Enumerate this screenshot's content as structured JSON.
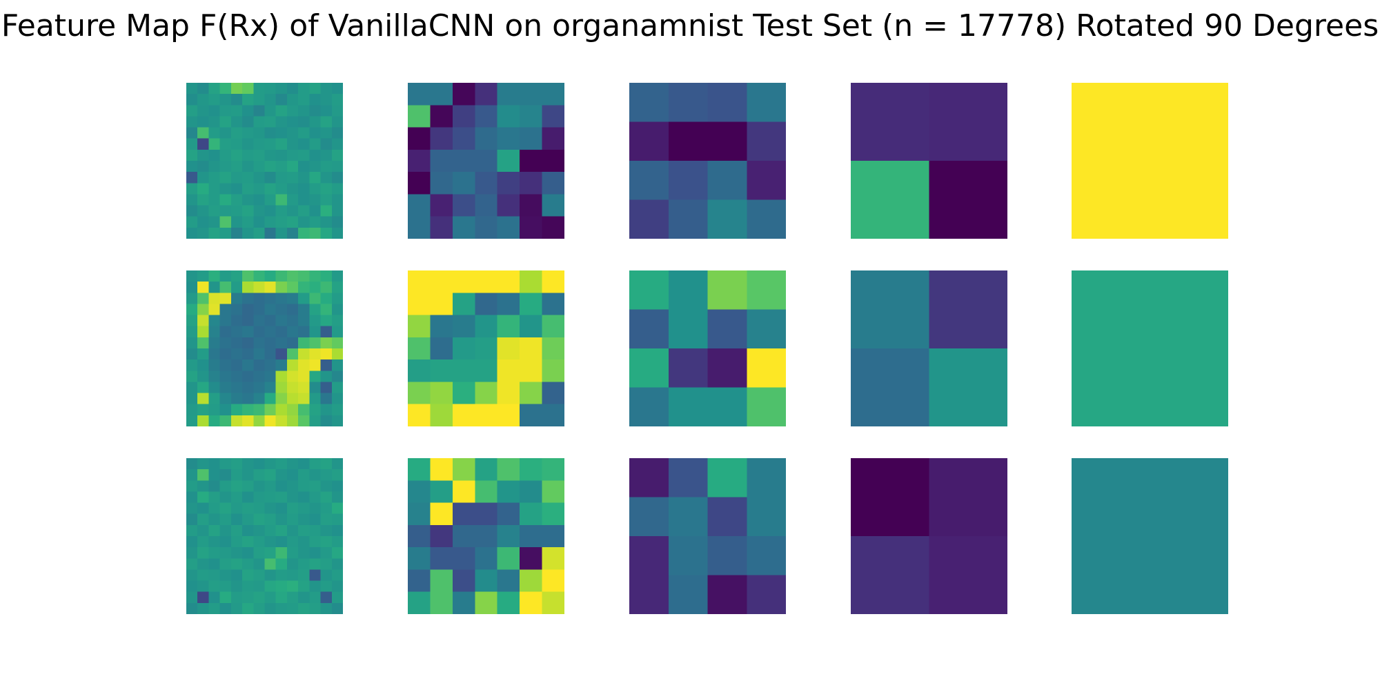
{
  "chart_data": {
    "type": "heatmap",
    "title": "Feature Map F(Rx) of VanillaCNN on organamnist Test Set (n = 17778) Rotated 90 Degrees",
    "colormap": "viridis",
    "value_range": [
      0,
      1
    ],
    "axes_visible": false,
    "rows": 3,
    "cols": 5,
    "grid_sizes": [
      14,
      7,
      4,
      2,
      1
    ],
    "panels": [
      [
        {
          "values": [
            [
              0.52,
              0.48,
              0.58,
              0.66,
              0.79,
              0.76,
              0.55,
              0.54,
              0.52,
              0.49,
              0.55,
              0.58,
              0.52,
              0.5
            ],
            [
              0.49,
              0.53,
              0.55,
              0.52,
              0.48,
              0.58,
              0.55,
              0.52,
              0.47,
              0.53,
              0.55,
              0.5,
              0.52,
              0.55
            ],
            [
              0.56,
              0.52,
              0.5,
              0.54,
              0.55,
              0.5,
              0.45,
              0.53,
              0.58,
              0.54,
              0.52,
              0.48,
              0.5,
              0.54
            ],
            [
              0.52,
              0.5,
              0.52,
              0.58,
              0.52,
              0.48,
              0.55,
              0.56,
              0.52,
              0.5,
              0.49,
              0.53,
              0.58,
              0.52
            ],
            [
              0.46,
              0.7,
              0.55,
              0.52,
              0.56,
              0.54,
              0.53,
              0.49,
              0.5,
              0.52,
              0.55,
              0.5,
              0.52,
              0.48
            ],
            [
              0.54,
              0.22,
              0.66,
              0.56,
              0.55,
              0.52,
              0.54,
              0.55,
              0.58,
              0.52,
              0.5,
              0.55,
              0.48,
              0.52
            ],
            [
              0.58,
              0.52,
              0.5,
              0.55,
              0.58,
              0.55,
              0.56,
              0.53,
              0.52,
              0.54,
              0.55,
              0.5,
              0.52,
              0.58
            ],
            [
              0.5,
              0.48,
              0.52,
              0.54,
              0.56,
              0.52,
              0.55,
              0.58,
              0.56,
              0.6,
              0.5,
              0.52,
              0.55,
              0.54
            ],
            [
              0.28,
              0.52,
              0.55,
              0.58,
              0.54,
              0.55,
              0.52,
              0.48,
              0.54,
              0.55,
              0.52,
              0.6,
              0.52,
              0.48
            ],
            [
              0.56,
              0.62,
              0.55,
              0.52,
              0.5,
              0.56,
              0.54,
              0.58,
              0.55,
              0.52,
              0.5,
              0.55,
              0.58,
              0.55
            ],
            [
              0.52,
              0.58,
              0.55,
              0.62,
              0.56,
              0.52,
              0.5,
              0.55,
              0.68,
              0.54,
              0.5,
              0.52,
              0.56,
              0.52
            ],
            [
              0.48,
              0.52,
              0.56,
              0.54,
              0.55,
              0.58,
              0.52,
              0.5,
              0.55,
              0.52,
              0.56,
              0.5,
              0.64,
              0.52
            ],
            [
              0.55,
              0.5,
              0.52,
              0.72,
              0.52,
              0.55,
              0.5,
              0.54,
              0.56,
              0.58,
              0.52,
              0.55,
              0.52,
              0.48
            ],
            [
              0.5,
              0.52,
              0.58,
              0.55,
              0.44,
              0.52,
              0.56,
              0.4,
              0.52,
              0.44,
              0.66,
              0.68,
              0.6,
              0.52
            ]
          ]
        },
        {
          "values": [
            [
              0.4,
              0.4,
              0.02,
              0.16,
              0.42,
              0.42,
              0.42
            ],
            [
              0.72,
              0.02,
              0.2,
              0.28,
              0.48,
              0.45,
              0.22
            ],
            [
              0.0,
              0.18,
              0.24,
              0.35,
              0.4,
              0.38,
              0.1
            ],
            [
              0.12,
              0.32,
              0.32,
              0.32,
              0.58,
              0.0,
              0.0
            ],
            [
              0.0,
              0.34,
              0.38,
              0.28,
              0.2,
              0.16,
              0.3
            ],
            [
              0.38,
              0.12,
              0.24,
              0.32,
              0.16,
              0.04,
              0.42
            ],
            [
              0.38,
              0.16,
              0.4,
              0.34,
              0.38,
              0.05,
              0.02
            ]
          ]
        },
        {
          "values": [
            [
              0.32,
              0.28,
              0.26,
              0.4
            ],
            [
              0.1,
              0.0,
              0.0,
              0.18
            ],
            [
              0.32,
              0.25,
              0.35,
              0.12
            ],
            [
              0.2,
              0.3,
              0.45,
              0.35
            ]
          ]
        },
        {
          "values": [
            [
              0.15,
              0.14
            ],
            [
              0.66,
              0.0
            ]
          ]
        },
        {
          "values": [
            [
              1.0
            ]
          ]
        }
      ],
      [
        {
          "values": [
            [
              0.52,
              0.55,
              0.64,
              0.55,
              0.58,
              0.72,
              0.66,
              0.62,
              0.68,
              0.72,
              0.7,
              0.66,
              0.64,
              0.54
            ],
            [
              0.5,
              0.98,
              0.52,
              0.7,
              0.55,
              0.88,
              0.92,
              0.96,
              0.8,
              0.75,
              0.66,
              0.64,
              0.68,
              0.58
            ],
            [
              0.54,
              0.72,
              0.95,
              0.96,
              0.42,
              0.38,
              0.36,
              0.38,
              0.4,
              0.42,
              0.55,
              0.68,
              0.62,
              0.55
            ],
            [
              0.62,
              0.82,
              0.96,
              0.4,
              0.38,
              0.34,
              0.36,
              0.4,
              0.38,
              0.36,
              0.42,
              0.58,
              0.66,
              0.52
            ],
            [
              0.58,
              0.92,
              0.46,
              0.4,
              0.36,
              0.34,
              0.38,
              0.36,
              0.4,
              0.38,
              0.42,
              0.54,
              0.6,
              0.56
            ],
            [
              0.55,
              0.88,
              0.44,
              0.36,
              0.38,
              0.4,
              0.36,
              0.38,
              0.36,
              0.4,
              0.38,
              0.52,
              0.3,
              0.54
            ],
            [
              0.52,
              0.72,
              0.42,
              0.38,
              0.36,
              0.34,
              0.38,
              0.36,
              0.38,
              0.36,
              0.68,
              0.72,
              0.8,
              0.76
            ],
            [
              0.48,
              0.55,
              0.4,
              0.36,
              0.38,
              0.36,
              0.4,
              0.36,
              0.26,
              0.72,
              0.92,
              0.96,
              0.98,
              0.88
            ],
            [
              0.54,
              0.5,
              0.42,
              0.38,
              0.36,
              0.4,
              0.36,
              0.38,
              0.42,
              0.9,
              0.96,
              0.98,
              0.3,
              0.52
            ],
            [
              0.58,
              0.52,
              0.44,
              0.4,
              0.38,
              0.36,
              0.38,
              0.4,
              0.88,
              0.94,
              0.96,
              0.6,
              0.52,
              0.46
            ],
            [
              0.52,
              0.6,
              0.48,
              0.42,
              0.4,
              0.38,
              0.4,
              0.44,
              0.86,
              0.92,
              0.94,
              0.48,
              0.3,
              0.55
            ],
            [
              0.52,
              0.9,
              0.56,
              0.46,
              0.42,
              0.4,
              0.44,
              0.62,
              0.82,
              0.9,
              0.92,
              0.54,
              0.4,
              0.52
            ],
            [
              0.54,
              0.58,
              0.55,
              0.5,
              0.62,
              0.66,
              0.68,
              0.78,
              0.88,
              0.84,
              0.7,
              0.58,
              0.52,
              0.55
            ],
            [
              0.55,
              0.88,
              0.62,
              0.68,
              0.92,
              0.96,
              0.84,
              0.98,
              0.92,
              0.86,
              0.74,
              0.56,
              0.48,
              0.52
            ]
          ]
        },
        {
          "values": [
            [
              1.0,
              1.0,
              1.0,
              1.0,
              1.0,
              0.88,
              1.0
            ],
            [
              1.0,
              1.0,
              0.58,
              0.34,
              0.38,
              0.62,
              0.38
            ],
            [
              0.84,
              0.4,
              0.42,
              0.52,
              0.66,
              0.52,
              0.7
            ],
            [
              0.72,
              0.36,
              0.54,
              0.56,
              0.96,
              0.98,
              0.78
            ],
            [
              0.56,
              0.58,
              0.58,
              0.58,
              0.98,
              0.98,
              0.8
            ],
            [
              0.8,
              0.84,
              0.64,
              0.82,
              0.98,
              0.82,
              0.32
            ],
            [
              1.0,
              0.86,
              1.0,
              1.0,
              1.0,
              0.38,
              0.38
            ]
          ]
        },
        {
          "values": [
            [
              0.62,
              0.5,
              0.8,
              0.74
            ],
            [
              0.3,
              0.5,
              0.28,
              0.44
            ],
            [
              0.62,
              0.18,
              0.1,
              1.0
            ],
            [
              0.4,
              0.5,
              0.5,
              0.72
            ]
          ]
        },
        {
          "values": [
            [
              0.42,
              0.18
            ],
            [
              0.36,
              0.52
            ]
          ]
        },
        {
          "values": [
            [
              0.6
            ]
          ]
        }
      ],
      [
        {
          "values": [
            [
              0.48,
              0.52,
              0.5,
              0.54,
              0.56,
              0.52,
              0.5,
              0.53,
              0.55,
              0.52,
              0.5,
              0.56,
              0.58,
              0.52
            ],
            [
              0.52,
              0.72,
              0.5,
              0.48,
              0.55,
              0.52,
              0.56,
              0.58,
              0.52,
              0.5,
              0.55,
              0.52,
              0.54,
              0.56
            ],
            [
              0.55,
              0.52,
              0.48,
              0.55,
              0.58,
              0.56,
              0.52,
              0.54,
              0.5,
              0.52,
              0.55,
              0.56,
              0.52,
              0.5
            ],
            [
              0.5,
              0.62,
              0.56,
              0.52,
              0.55,
              0.5,
              0.54,
              0.55,
              0.56,
              0.52,
              0.5,
              0.54,
              0.58,
              0.52
            ],
            [
              0.52,
              0.5,
              0.55,
              0.58,
              0.54,
              0.56,
              0.55,
              0.52,
              0.5,
              0.56,
              0.54,
              0.52,
              0.55,
              0.62
            ],
            [
              0.48,
              0.56,
              0.52,
              0.55,
              0.5,
              0.54,
              0.58,
              0.56,
              0.52,
              0.55,
              0.52,
              0.5,
              0.56,
              0.55
            ],
            [
              0.55,
              0.52,
              0.58,
              0.52,
              0.56,
              0.5,
              0.52,
              0.55,
              0.58,
              0.52,
              0.56,
              0.55,
              0.52,
              0.5
            ],
            [
              0.5,
              0.55,
              0.52,
              0.5,
              0.55,
              0.58,
              0.55,
              0.52,
              0.5,
              0.54,
              0.52,
              0.56,
              0.58,
              0.55
            ],
            [
              0.52,
              0.58,
              0.55,
              0.54,
              0.52,
              0.5,
              0.56,
              0.58,
              0.68,
              0.55,
              0.52,
              0.5,
              0.54,
              0.6
            ],
            [
              0.56,
              0.52,
              0.5,
              0.56,
              0.58,
              0.55,
              0.52,
              0.7,
              0.62,
              0.52,
              0.55,
              0.58,
              0.56,
              0.52
            ],
            [
              0.52,
              0.55,
              0.54,
              0.52,
              0.5,
              0.58,
              0.56,
              0.52,
              0.55,
              0.54,
              0.56,
              0.28,
              0.52,
              0.55
            ],
            [
              0.5,
              0.52,
              0.56,
              0.55,
              0.52,
              0.55,
              0.54,
              0.6,
              0.62,
              0.64,
              0.58,
              0.52,
              0.55,
              0.52
            ],
            [
              0.52,
              0.22,
              0.5,
              0.62,
              0.55,
              0.56,
              0.58,
              0.55,
              0.6,
              0.56,
              0.52,
              0.55,
              0.3,
              0.55
            ],
            [
              0.48,
              0.52,
              0.55,
              0.5,
              0.54,
              0.6,
              0.56,
              0.52,
              0.54,
              0.55,
              0.58,
              0.56,
              0.52,
              0.48
            ]
          ]
        },
        {
          "values": [
            [
              0.62,
              1.0,
              0.82,
              0.58,
              0.72,
              0.64,
              0.66
            ],
            [
              0.46,
              0.56,
              1.0,
              0.7,
              0.52,
              0.48,
              0.76
            ],
            [
              0.44,
              1.0,
              0.24,
              0.24,
              0.32,
              0.58,
              0.64
            ],
            [
              0.3,
              0.18,
              0.34,
              0.34,
              0.44,
              0.36,
              0.36
            ],
            [
              0.42,
              0.28,
              0.28,
              0.38,
              0.68,
              0.05,
              0.94
            ],
            [
              0.32,
              0.72,
              0.24,
              0.48,
              0.4,
              0.86,
              1.0
            ],
            [
              0.58,
              0.72,
              0.42,
              0.82,
              0.62,
              1.0,
              0.92
            ]
          ]
        },
        {
          "values": [
            [
              0.1,
              0.26,
              0.62,
              0.42
            ],
            [
              0.34,
              0.4,
              0.22,
              0.42
            ],
            [
              0.14,
              0.38,
              0.3,
              0.36
            ],
            [
              0.14,
              0.36,
              0.06,
              0.16
            ]
          ]
        },
        {
          "values": [
            [
              0.0,
              0.1
            ],
            [
              0.16,
              0.12
            ]
          ]
        },
        {
          "values": [
            [
              0.46
            ]
          ]
        }
      ]
    ]
  }
}
